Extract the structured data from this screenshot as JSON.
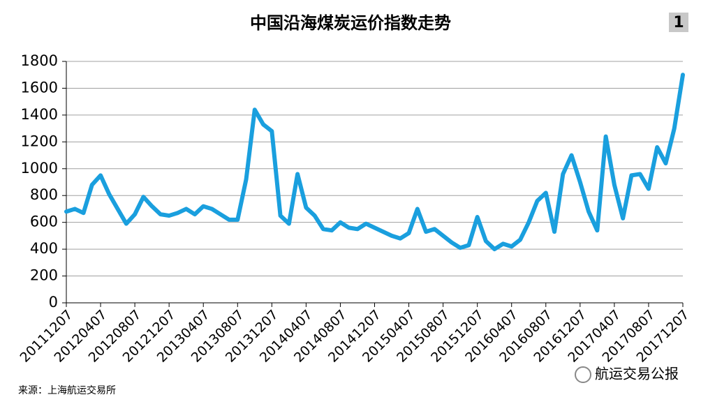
{
  "chart_data": {
    "type": "line",
    "title": "中国沿海煤炭运价指数走势",
    "badge": "1",
    "source": "来源：上海航运交易所",
    "watermark": "航运交易公报",
    "categories": [
      "20111207",
      null,
      null,
      null,
      "20120407",
      null,
      null,
      null,
      "20120807",
      null,
      null,
      null,
      "20121207",
      null,
      null,
      null,
      "20130407",
      null,
      null,
      null,
      "20130807",
      null,
      null,
      null,
      "20131207",
      null,
      null,
      null,
      "20140407",
      null,
      null,
      null,
      "20140807",
      null,
      null,
      null,
      "20141207",
      null,
      null,
      null,
      "20150407",
      null,
      null,
      null,
      "20150807",
      null,
      null,
      null,
      "20151207",
      null,
      null,
      null,
      "20160407",
      null,
      null,
      null,
      "20160807",
      null,
      null,
      null,
      "20161207",
      null,
      null,
      null,
      "20170407",
      null,
      null,
      null,
      "20170807",
      null,
      null,
      null,
      "20171207"
    ],
    "series": [
      {
        "color": "#1a9fde",
        "values": [
          680,
          700,
          670,
          880,
          950,
          810,
          700,
          590,
          660,
          790,
          720,
          660,
          650,
          670,
          700,
          660,
          720,
          700,
          660,
          620,
          620,
          920,
          1440,
          1330,
          1280,
          650,
          590,
          960,
          710,
          650,
          550,
          540,
          600,
          560,
          550,
          590,
          560,
          530,
          500,
          480,
          520,
          700,
          530,
          550,
          500,
          450,
          410,
          430,
          640,
          460,
          400,
          440,
          420,
          470,
          600,
          760,
          820,
          530,
          960,
          1100,
          900,
          680,
          540,
          1240,
          880,
          630,
          950,
          960,
          850,
          1160,
          1040,
          1300,
          1700
        ]
      }
    ],
    "ylim": [
      0,
      1800
    ],
    "yticks": [
      0,
      200,
      400,
      600,
      800,
      1000,
      1200,
      1400,
      1600,
      1800
    ],
    "grid": true
  }
}
